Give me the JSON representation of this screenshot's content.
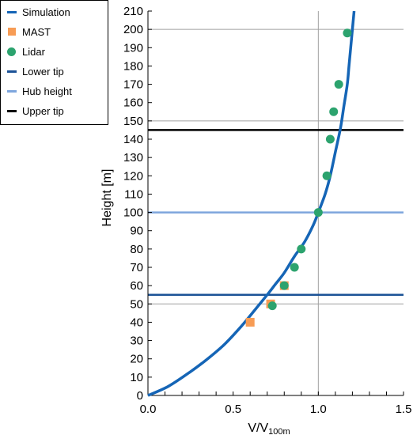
{
  "chart_data": {
    "type": "scatter",
    "xlabel_main": "V/V",
    "xlabel_sub": "100m",
    "ylabel": "Height [m]",
    "xlim": [
      0.0,
      1.5
    ],
    "ylim": [
      0,
      210
    ],
    "x_ticks": [
      "0.0",
      "0.5",
      "1.0",
      "1.5"
    ],
    "y_ticks": [
      "0",
      "10",
      "20",
      "30",
      "40",
      "50",
      "60",
      "70",
      "80",
      "90",
      "100",
      "110",
      "120",
      "130",
      "140",
      "150",
      "160",
      "170",
      "180",
      "190",
      "200",
      "210"
    ],
    "gridlines_y": [
      50,
      150,
      200
    ],
    "gridlines_x": [
      1.0
    ],
    "legend_placement": "top-left outside",
    "series": [
      {
        "name": "Simulation",
        "kind": "line",
        "color": "#1565b6",
        "x": [
          0.0,
          0.12,
          0.25,
          0.35,
          0.45,
          0.55,
          0.63,
          0.7,
          0.75,
          0.8,
          0.86,
          0.92,
          0.97,
          1.0,
          1.04,
          1.07,
          1.1,
          1.13,
          1.15,
          1.17,
          1.18,
          1.19,
          1.2,
          1.21
        ],
        "y": [
          0,
          5,
          13,
          20,
          28,
          38,
          47,
          55,
          61,
          67,
          76,
          84,
          93,
          100,
          110,
          120,
          133,
          146,
          158,
          170,
          180,
          190,
          200,
          210
        ]
      },
      {
        "name": "MAST",
        "kind": "square",
        "color": "#f79c55",
        "x": [
          0.6,
          0.72,
          0.8
        ],
        "y": [
          40,
          50,
          60
        ]
      },
      {
        "name": "Lidar",
        "kind": "circle",
        "color": "#2ca36e",
        "x": [
          0.73,
          0.8,
          0.86,
          0.9,
          1.0,
          1.05,
          1.07,
          1.09,
          1.12,
          1.17
        ],
        "y": [
          49,
          60,
          70,
          80,
          100,
          120,
          140,
          155,
          170,
          198
        ]
      },
      {
        "name": "Lower tip",
        "kind": "hline",
        "color": "#1b5296",
        "y": 55
      },
      {
        "name": "Hub height",
        "kind": "hline",
        "color": "#7ea6dd",
        "y": 100
      },
      {
        "name": "Upper tip",
        "kind": "hline",
        "color": "#000000",
        "y": 145
      }
    ]
  }
}
